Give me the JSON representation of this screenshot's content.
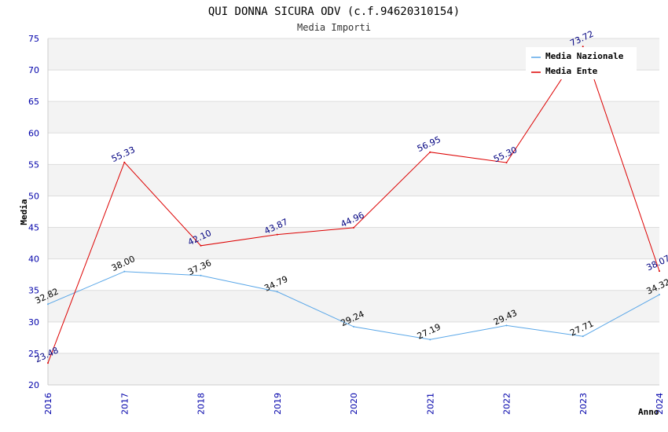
{
  "chart_data": {
    "type": "line",
    "title": "QUI DONNA SICURA ODV (c.f.94620310154)",
    "subtitle": "Media Importi",
    "xlabel": "Anno",
    "ylabel": "Media",
    "ylim": [
      20,
      75
    ],
    "yticks": [
      20,
      25,
      30,
      35,
      40,
      45,
      50,
      55,
      60,
      65,
      70,
      75
    ],
    "categories": [
      "2016",
      "2017",
      "2018",
      "2019",
      "2020",
      "2021",
      "2022",
      "2023",
      "2024"
    ],
    "grid": true,
    "legend_position": "top-right",
    "series": [
      {
        "name": "Media Nazionale",
        "color": "#5aa7e8",
        "label_color": "#000000",
        "values": [
          32.82,
          38.0,
          37.36,
          34.79,
          29.24,
          27.19,
          29.43,
          27.71,
          34.32
        ],
        "labels": [
          "32.82",
          "38.00",
          "37.36",
          "34.79",
          "29.24",
          "27.19",
          "29.43",
          "27.71",
          "34.32"
        ]
      },
      {
        "name": "Media Ente",
        "color": "#dd0000",
        "label_color": "#000080",
        "values": [
          23.48,
          55.33,
          42.1,
          43.87,
          44.96,
          56.95,
          55.3,
          73.72,
          38.07
        ],
        "labels": [
          "23.48",
          "55.33",
          "42.10",
          "43.87",
          "44.96",
          "56.95",
          "55.30",
          "73.72",
          "38.07"
        ]
      }
    ]
  }
}
